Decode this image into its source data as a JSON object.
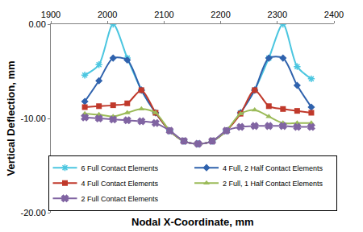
{
  "chart_data": {
    "type": "line",
    "x_label": "Nodal X-Coordinate, mm",
    "y_label": "Vertical Deflection, mm",
    "x": [
      1960,
      1985,
      2010,
      2035,
      2060,
      2085,
      2110,
      2135,
      2160,
      2185,
      2210,
      2235,
      2260,
      2285,
      2310,
      2335,
      2360
    ],
    "series": [
      {
        "name": "6 Full Contact Elements",
        "color": "#4bc6e0",
        "marker": "asterisk",
        "line_style": "smooth",
        "values": [
          -5.4,
          -4.3,
          0.0,
          -3.6,
          -7.0,
          -9.4,
          -11.3,
          -12.4,
          -12.7,
          -12.4,
          -11.3,
          -9.4,
          -7.0,
          -3.6,
          0.0,
          -4.5,
          -5.8
        ]
      },
      {
        "name": "4 Full, 2 Half Contact Elements",
        "color": "#2f62ad",
        "marker": "diamond",
        "line_style": "smooth",
        "values": [
          -8.2,
          -6.0,
          -3.6,
          -3.8,
          -7.0,
          -9.4,
          -11.3,
          -12.4,
          -12.7,
          -12.4,
          -11.3,
          -9.4,
          -7.0,
          -3.6,
          -3.6,
          -6.5,
          -8.8
        ]
      },
      {
        "name": "4 Full Contact Elements",
        "color": "#c0392b",
        "marker": "square",
        "line_style": "smooth",
        "values": [
          -8.8,
          -8.7,
          -8.6,
          -8.4,
          -7.0,
          -9.4,
          -11.3,
          -12.4,
          -12.7,
          -12.4,
          -11.3,
          -9.5,
          -7.0,
          -8.7,
          -9.0,
          -9.2,
          -9.4
        ]
      },
      {
        "name": "2 Full, 1 Half Contact Elements",
        "color": "#9bbb59",
        "marker": "triangle",
        "line_style": "smooth",
        "values": [
          -9.5,
          -9.6,
          -9.8,
          -9.4,
          -9.0,
          -9.4,
          -11.3,
          -12.4,
          -12.7,
          -12.4,
          -11.3,
          -9.5,
          -9.1,
          -9.8,
          -10.5,
          -10.5,
          -10.5
        ]
      },
      {
        "name": "2 Full Contact Elements",
        "color": "#8064a2",
        "marker": "x",
        "line_style": "smooth",
        "values": [
          -9.9,
          -10.0,
          -10.1,
          -10.2,
          -10.3,
          -10.5,
          -11.3,
          -12.4,
          -12.7,
          -12.4,
          -11.3,
          -10.9,
          -10.8,
          -10.8,
          -10.8,
          -10.9,
          -10.9
        ]
      }
    ],
    "xlim": [
      1900,
      2400
    ],
    "xticks": [
      1900,
      2000,
      2100,
      2200,
      2300,
      2400
    ],
    "ylim": [
      -20,
      0
    ],
    "yticks": [
      {
        "value": 0,
        "label": "0.00"
      },
      {
        "value": -10,
        "label": "-10.00"
      },
      {
        "value": -20,
        "label": "-20.00"
      }
    ],
    "grid": false,
    "legend": "bottom"
  }
}
